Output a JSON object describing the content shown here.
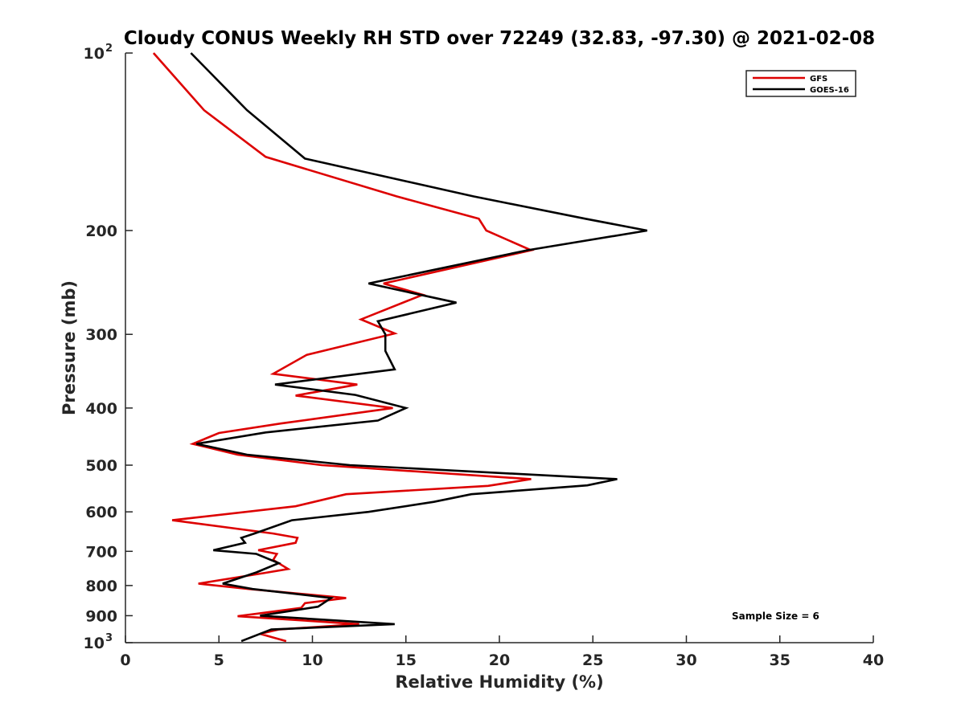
{
  "chart_data": {
    "type": "line",
    "title": "Cloudy CONUS Weekly RH STD over 72249 (32.83, -97.30) @ 2021-02-08",
    "xlabel": "Relative Humidity (%)",
    "ylabel": "Pressure (mb)",
    "xlim": [
      0,
      40
    ],
    "ylim": [
      100,
      1000
    ],
    "y_scale": "log",
    "y_reversed": true,
    "grid": false,
    "legend_position": "top-right",
    "x_ticks": [
      0,
      5,
      10,
      15,
      20,
      25,
      30,
      35,
      40
    ],
    "x_tick_labels": [
      "0",
      "5",
      "10",
      "15",
      "20",
      "25",
      "30",
      "35",
      "40"
    ],
    "y_ticks": [
      {
        "value": 100,
        "base": "10",
        "exp": "2"
      },
      {
        "value": 200,
        "label": "200"
      },
      {
        "value": 300,
        "label": "300"
      },
      {
        "value": 400,
        "label": "400"
      },
      {
        "value": 500,
        "label": "500"
      },
      {
        "value": 600,
        "label": "600"
      },
      {
        "value": 700,
        "label": "700"
      },
      {
        "value": 800,
        "label": "800"
      },
      {
        "value": 900,
        "label": "900"
      },
      {
        "value": 1000,
        "base": "10",
        "exp": "3"
      }
    ],
    "annotation": "Sample Size = 6",
    "series": [
      {
        "name": "GFS",
        "color": "#dd0000",
        "points": [
          [
            1.5,
            100
          ],
          [
            4.2,
            125
          ],
          [
            7.5,
            150
          ],
          [
            14.5,
            175
          ],
          [
            18.9,
            191
          ],
          [
            19.3,
            200
          ],
          [
            21.7,
            216
          ],
          [
            13.8,
            246
          ],
          [
            15.9,
            257
          ],
          [
            12.6,
            283
          ],
          [
            14.4,
            299
          ],
          [
            9.7,
            325
          ],
          [
            7.9,
            350
          ],
          [
            12.4,
            365
          ],
          [
            9.1,
            381
          ],
          [
            14.3,
            400
          ],
          [
            8.3,
            425
          ],
          [
            5.0,
            441
          ],
          [
            3.6,
            460
          ],
          [
            6.0,
            480
          ],
          [
            10.5,
            500
          ],
          [
            21.7,
            528
          ],
          [
            19.4,
            542
          ],
          [
            11.8,
            560
          ],
          [
            9.1,
            587
          ],
          [
            2.5,
            620
          ],
          [
            7.9,
            653
          ],
          [
            9.2,
            664
          ],
          [
            9.1,
            677
          ],
          [
            7.1,
            697
          ],
          [
            8.1,
            707
          ],
          [
            7.9,
            724
          ],
          [
            8.7,
            750
          ],
          [
            7.4,
            762
          ],
          [
            3.9,
            794
          ],
          [
            6.6,
            811
          ],
          [
            11.8,
            840
          ],
          [
            9.6,
            857
          ],
          [
            9.4,
            873
          ],
          [
            6.0,
            902
          ],
          [
            12.5,
            930
          ],
          [
            8.2,
            950
          ],
          [
            7.2,
            966
          ],
          [
            8.6,
            994
          ]
        ]
      },
      {
        "name": "GOES-16",
        "color": "#000000",
        "points": [
          [
            3.5,
            100
          ],
          [
            6.5,
            125
          ],
          [
            9.6,
            151
          ],
          [
            18.6,
            175
          ],
          [
            24.6,
            191
          ],
          [
            27.9,
            200
          ],
          [
            21.5,
            216
          ],
          [
            13.0,
            246
          ],
          [
            17.7,
            265
          ],
          [
            13.5,
            285
          ],
          [
            13.9,
            300
          ],
          [
            13.9,
            320
          ],
          [
            14.4,
            344
          ],
          [
            8.0,
            365
          ],
          [
            12.3,
            380
          ],
          [
            15.0,
            400
          ],
          [
            13.5,
            420
          ],
          [
            7.5,
            440
          ],
          [
            3.8,
            460
          ],
          [
            6.5,
            480
          ],
          [
            12.0,
            500
          ],
          [
            26.3,
            528
          ],
          [
            24.7,
            541
          ],
          [
            18.5,
            560
          ],
          [
            16.5,
            577
          ],
          [
            13.0,
            600
          ],
          [
            8.9,
            620
          ],
          [
            6.9,
            653
          ],
          [
            6.2,
            664
          ],
          [
            6.4,
            677
          ],
          [
            4.7,
            697
          ],
          [
            7.0,
            707
          ],
          [
            8.2,
            733
          ],
          [
            7.0,
            760
          ],
          [
            5.2,
            794
          ],
          [
            6.8,
            811
          ],
          [
            11.0,
            840
          ],
          [
            10.3,
            869
          ],
          [
            7.2,
            900
          ],
          [
            14.4,
            930
          ],
          [
            7.8,
            950
          ],
          [
            6.2,
            994
          ]
        ]
      }
    ]
  }
}
